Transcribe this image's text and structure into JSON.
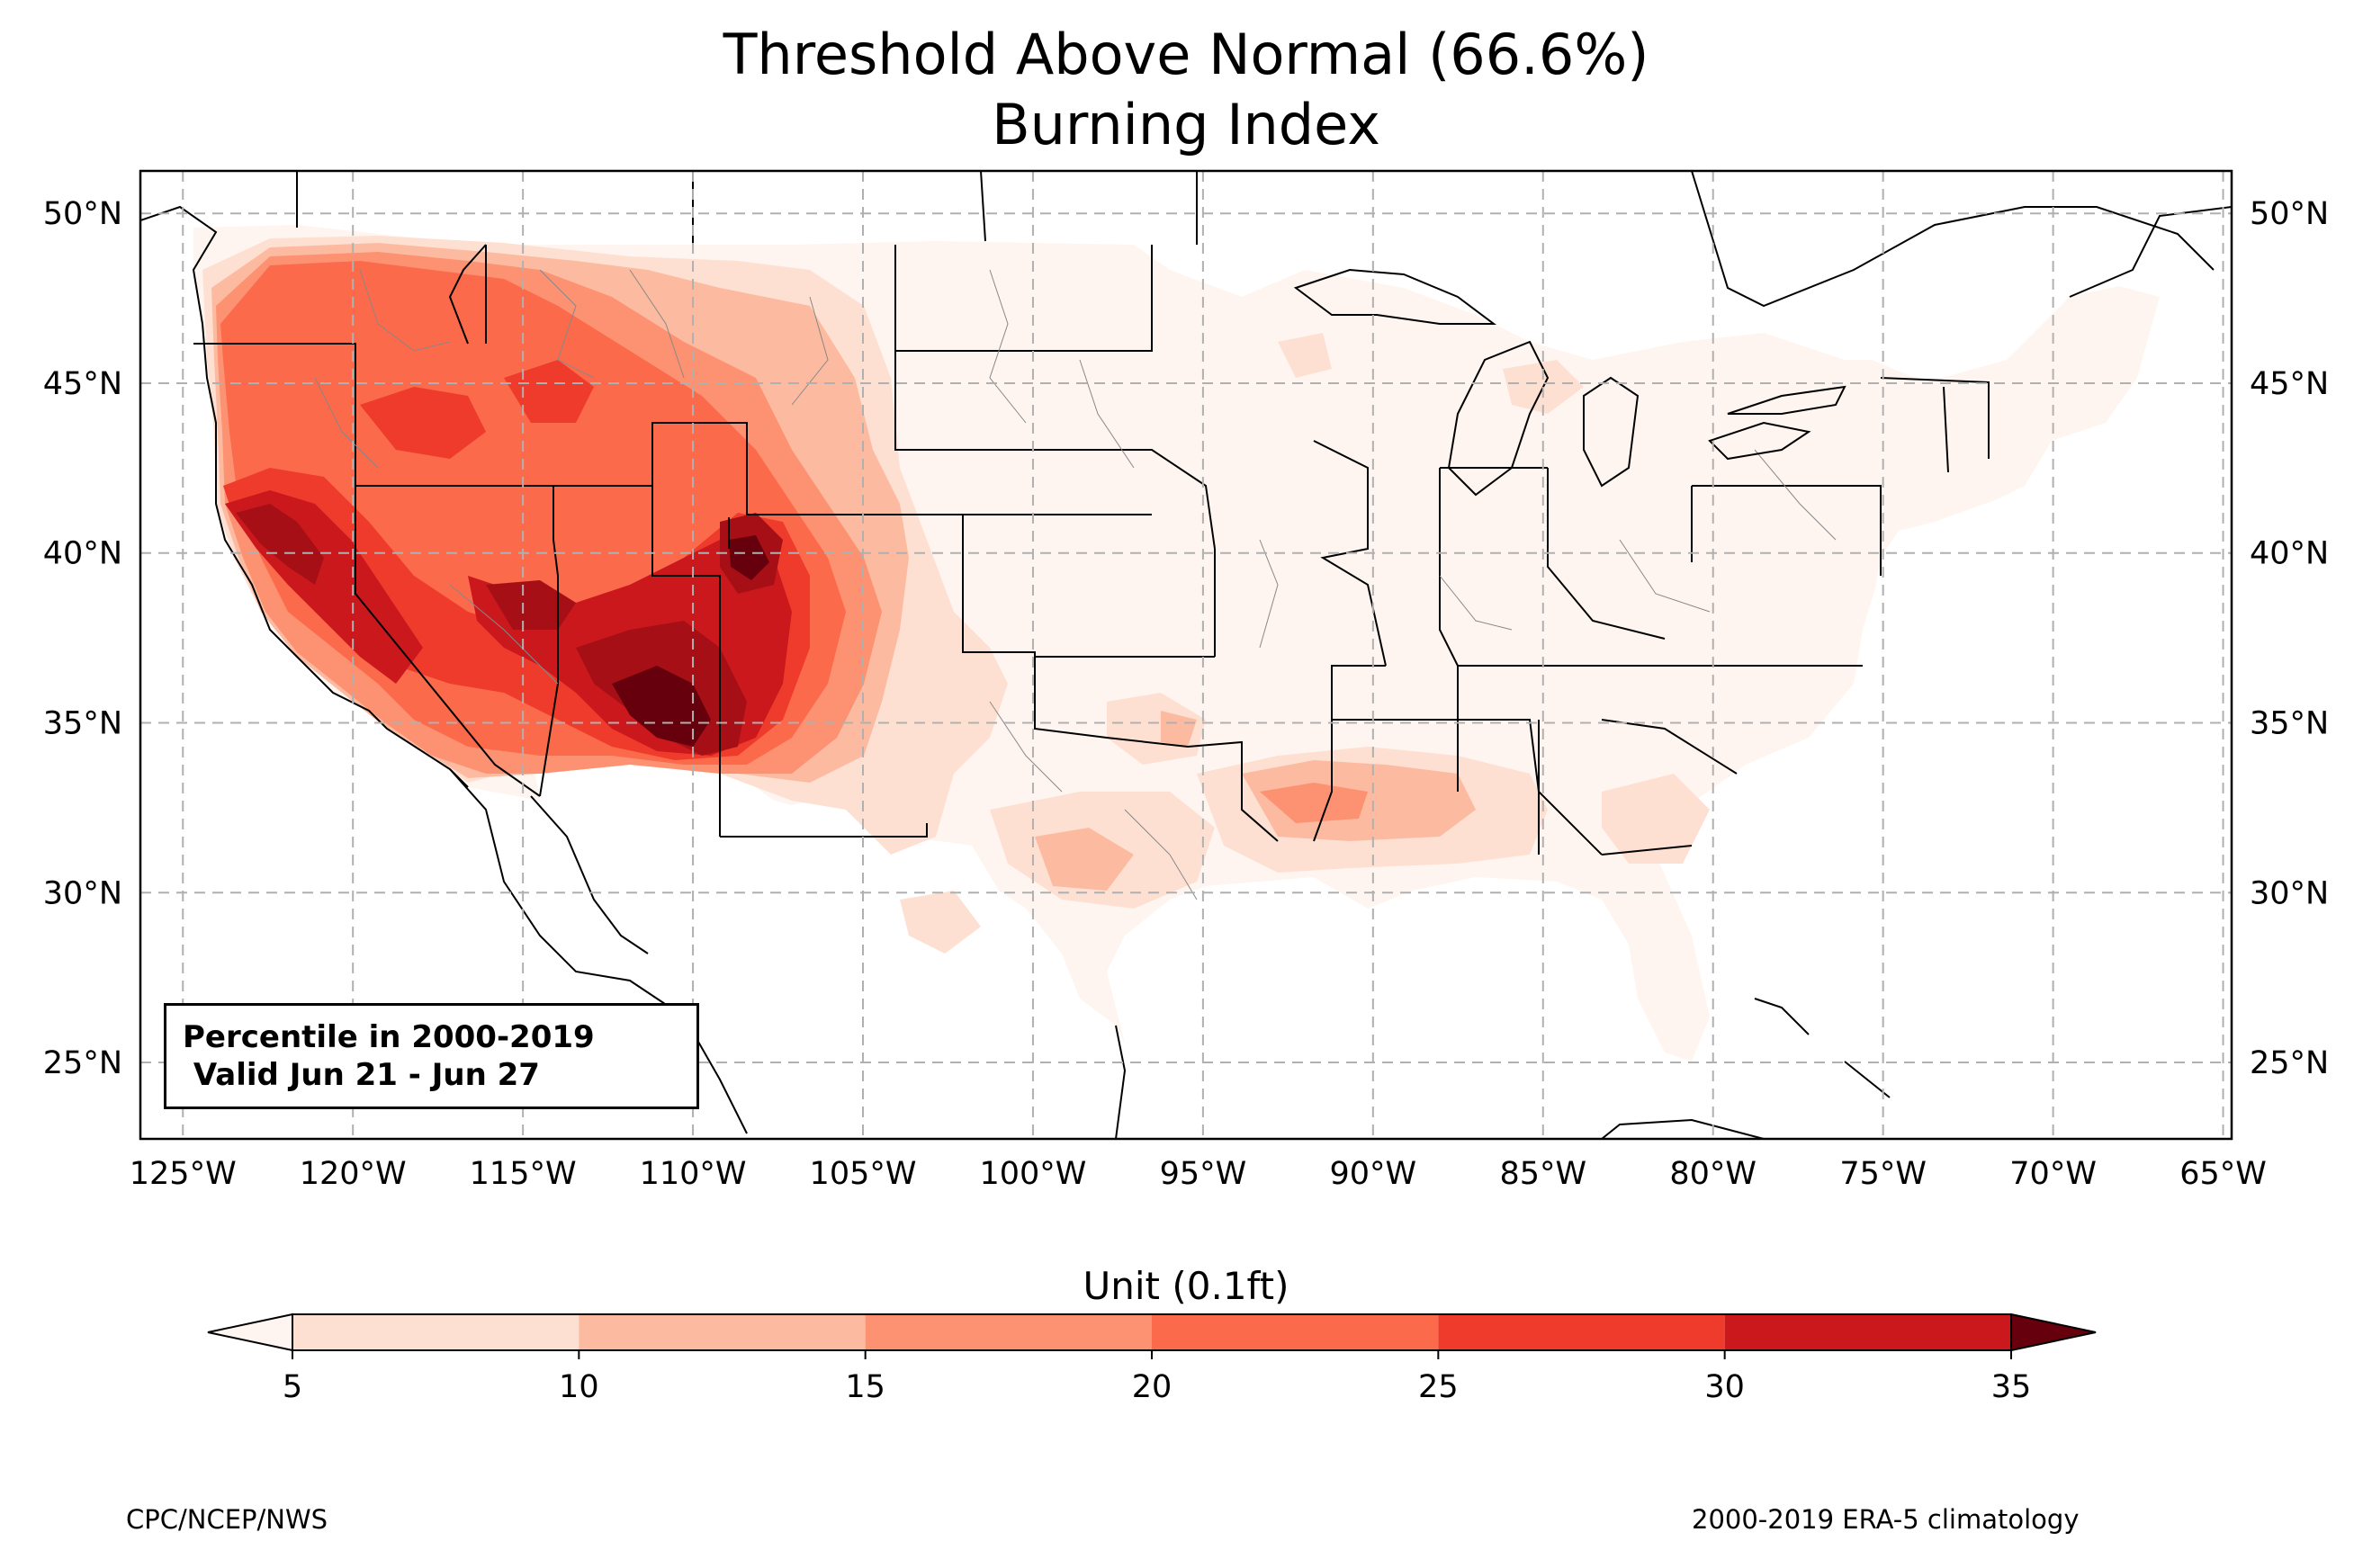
{
  "title_line1": "Threshold Above Normal (66.6%)",
  "title_line2": "Burning Index",
  "annotation": {
    "line1": "Percentile in 2000-2019",
    "line2": " Valid Jun 21 - Jun 27"
  },
  "colorbar": {
    "label": "Unit (0.1ft)",
    "levels": [
      5,
      10,
      15,
      20,
      25,
      30,
      35
    ],
    "tick_labels": [
      "5",
      "10",
      "15",
      "20",
      "25",
      "30",
      "35"
    ],
    "colors": [
      "#fee0d2",
      "#fcbba1",
      "#fc9272",
      "#fb6a4a",
      "#ef3b2c",
      "#cb181d",
      "#a50f15"
    ],
    "under_color": "#fff5f0",
    "over_color": "#67000d",
    "extend": "both"
  },
  "map": {
    "lon_ticks": [
      "125°W",
      "120°W",
      "115°W",
      "110°W",
      "105°W",
      "100°W",
      "95°W",
      "90°W",
      "85°W",
      "80°W",
      "75°W",
      "70°W",
      "65°W"
    ],
    "lat_ticks": [
      "50°N",
      "45°N",
      "40°N",
      "35°N",
      "30°N",
      "25°N"
    ],
    "lon_range": [
      -126.25,
      -64.75
    ],
    "lat_range": [
      22.75,
      51.25
    ],
    "gridlines": true
  },
  "footer_left": "CPC/NCEP/NWS",
  "footer_right": "2000-2019 ERA-5 climatology"
}
